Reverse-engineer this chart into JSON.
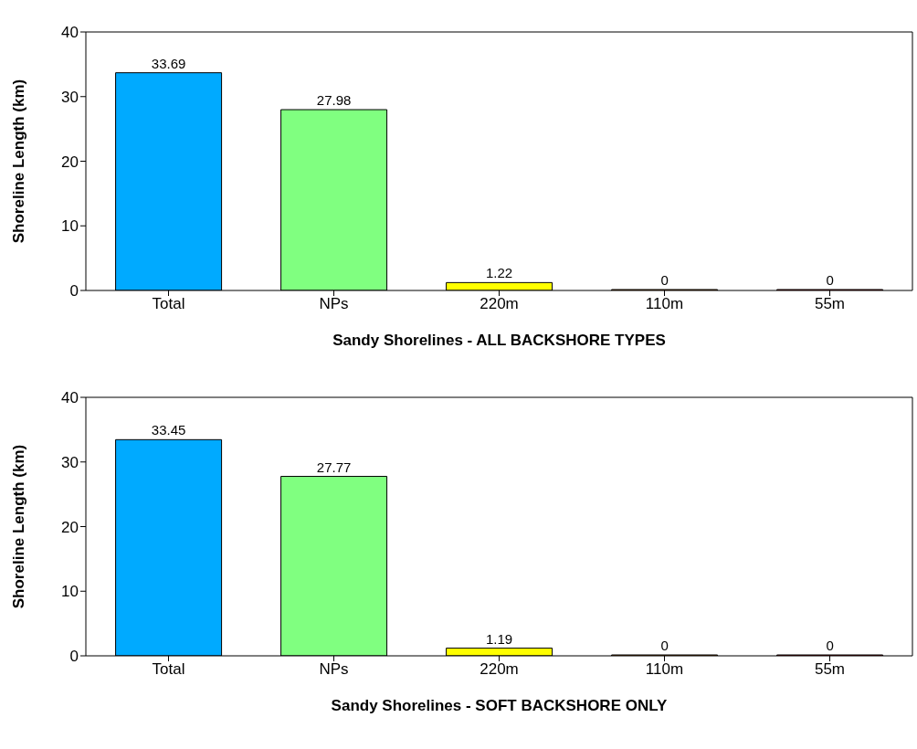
{
  "chart_data": [
    {
      "type": "bar",
      "xlabel": "Sandy Shorelines - ALL BACKSHORE TYPES",
      "ylabel": "Shoreline Length (km)",
      "categories": [
        "Total",
        "NPs",
        "220m",
        "110m",
        "55m"
      ],
      "values": [
        33.69,
        27.98,
        1.22,
        0,
        0
      ],
      "colors": [
        "#00aaff",
        "#80ff80",
        "#ffff00",
        "#ff8000",
        "#ff0000"
      ],
      "ylim": [
        0,
        40
      ],
      "yticks": [
        0,
        10,
        20,
        30,
        40
      ],
      "data_labels": true,
      "grid": false,
      "legend": false
    },
    {
      "type": "bar",
      "xlabel": "Sandy Shorelines - SOFT BACKSHORE ONLY",
      "ylabel": "Shoreline Length (km)",
      "categories": [
        "Total",
        "NPs",
        "220m",
        "110m",
        "55m"
      ],
      "values": [
        33.45,
        27.77,
        1.19,
        0,
        0
      ],
      "colors": [
        "#00aaff",
        "#80ff80",
        "#ffff00",
        "#ff8000",
        "#ff0000"
      ],
      "ylim": [
        0,
        40
      ],
      "yticks": [
        0,
        10,
        20,
        30,
        40
      ],
      "data_labels": true,
      "grid": false,
      "legend": false
    }
  ]
}
